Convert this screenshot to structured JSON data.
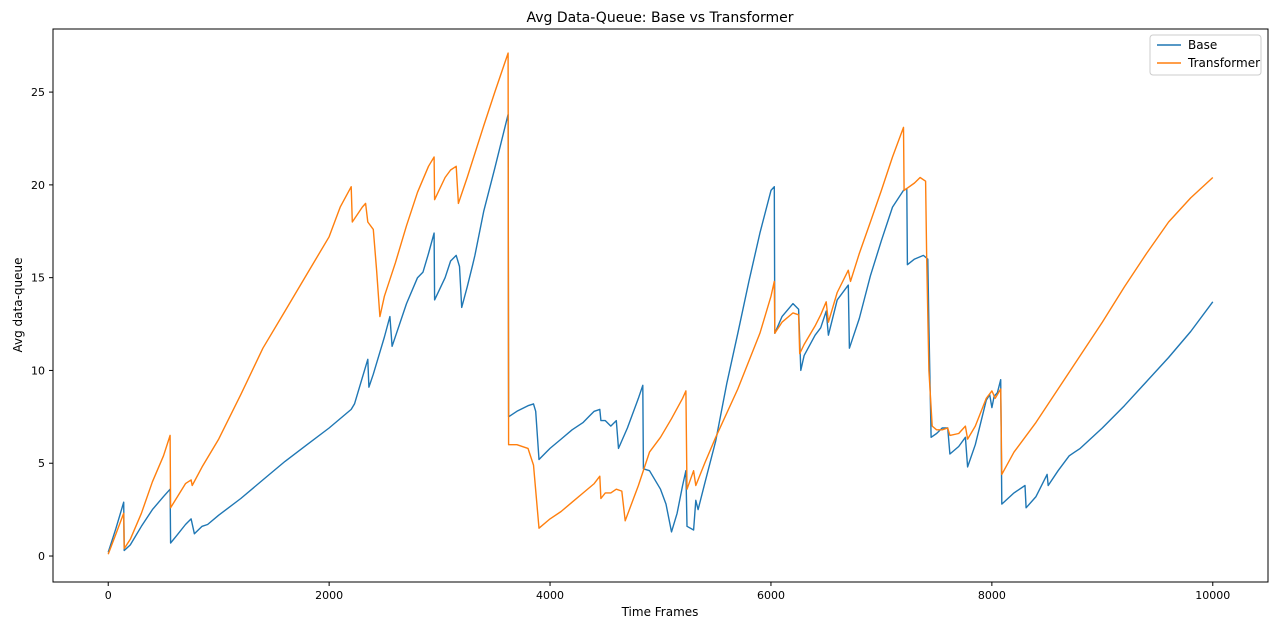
{
  "chart_data": {
    "type": "line",
    "title": "Avg Data-Queue: Base vs Transformer",
    "xlabel": "Time Frames",
    "ylabel": "Avg data-queue",
    "xlim": [
      -500,
      10500
    ],
    "ylim": [
      -1.4,
      28.4
    ],
    "xticks": [
      0,
      2000,
      4000,
      6000,
      8000,
      10000
    ],
    "yticks": [
      0,
      5,
      10,
      15,
      20,
      25
    ],
    "grid": false,
    "legend": "top-right",
    "series": [
      {
        "name": "Base",
        "color": "#1f77b4",
        "points": [
          [
            0,
            0.2
          ],
          [
            70,
            1.5
          ],
          [
            140,
            2.9
          ],
          [
            145,
            0.3
          ],
          [
            200,
            0.6
          ],
          [
            300,
            1.6
          ],
          [
            400,
            2.5
          ],
          [
            500,
            3.2
          ],
          [
            560,
            3.6
          ],
          [
            565,
            0.7
          ],
          [
            620,
            1.1
          ],
          [
            700,
            1.7
          ],
          [
            750,
            2.0
          ],
          [
            780,
            1.2
          ],
          [
            850,
            1.6
          ],
          [
            900,
            1.7
          ],
          [
            1000,
            2.2
          ],
          [
            1200,
            3.1
          ],
          [
            1400,
            4.1
          ],
          [
            1600,
            5.1
          ],
          [
            1800,
            6.0
          ],
          [
            2000,
            6.9
          ],
          [
            2200,
            7.9
          ],
          [
            2230,
            8.2
          ],
          [
            2350,
            10.6
          ],
          [
            2360,
            9.1
          ],
          [
            2400,
            9.8
          ],
          [
            2500,
            11.8
          ],
          [
            2550,
            12.9
          ],
          [
            2570,
            11.3
          ],
          [
            2700,
            13.6
          ],
          [
            2800,
            15.0
          ],
          [
            2850,
            15.3
          ],
          [
            2900,
            16.3
          ],
          [
            2950,
            17.4
          ],
          [
            2955,
            13.8
          ],
          [
            3050,
            15.0
          ],
          [
            3100,
            15.9
          ],
          [
            3150,
            16.2
          ],
          [
            3180,
            15.6
          ],
          [
            3200,
            13.4
          ],
          [
            3250,
            14.5
          ],
          [
            3300,
            15.7
          ],
          [
            3320,
            16.2
          ],
          [
            3400,
            18.6
          ],
          [
            3500,
            20.9
          ],
          [
            3620,
            23.8
          ],
          [
            3625,
            7.5
          ],
          [
            3700,
            7.8
          ],
          [
            3800,
            8.1
          ],
          [
            3850,
            8.2
          ],
          [
            3870,
            7.8
          ],
          [
            3900,
            5.2
          ],
          [
            4000,
            5.8
          ],
          [
            4100,
            6.3
          ],
          [
            4200,
            6.8
          ],
          [
            4300,
            7.2
          ],
          [
            4350,
            7.5
          ],
          [
            4400,
            7.8
          ],
          [
            4450,
            7.9
          ],
          [
            4460,
            7.3
          ],
          [
            4500,
            7.3
          ],
          [
            4550,
            7.0
          ],
          [
            4600,
            7.3
          ],
          [
            4620,
            5.8
          ],
          [
            4700,
            6.9
          ],
          [
            4800,
            8.5
          ],
          [
            4840,
            9.2
          ],
          [
            4845,
            4.7
          ],
          [
            4900,
            4.6
          ],
          [
            5000,
            3.6
          ],
          [
            5050,
            2.8
          ],
          [
            5100,
            1.3
          ],
          [
            5150,
            2.3
          ],
          [
            5200,
            3.8
          ],
          [
            5230,
            4.6
          ],
          [
            5240,
            1.6
          ],
          [
            5300,
            1.4
          ],
          [
            5320,
            3.0
          ],
          [
            5340,
            2.5
          ],
          [
            5400,
            3.9
          ],
          [
            5500,
            6.2
          ],
          [
            5600,
            9.3
          ],
          [
            5700,
            12.0
          ],
          [
            5800,
            14.8
          ],
          [
            5900,
            17.4
          ],
          [
            6000,
            19.7
          ],
          [
            6030,
            19.9
          ],
          [
            6035,
            12.0
          ],
          [
            6100,
            12.9
          ],
          [
            6200,
            13.6
          ],
          [
            6250,
            13.3
          ],
          [
            6270,
            10.0
          ],
          [
            6300,
            10.8
          ],
          [
            6400,
            11.9
          ],
          [
            6450,
            12.3
          ],
          [
            6500,
            13.2
          ],
          [
            6520,
            11.9
          ],
          [
            6600,
            13.8
          ],
          [
            6700,
            14.6
          ],
          [
            6710,
            11.2
          ],
          [
            6800,
            12.8
          ],
          [
            6900,
            15.1
          ],
          [
            7000,
            17.0
          ],
          [
            7100,
            18.8
          ],
          [
            7200,
            19.7
          ],
          [
            7230,
            19.8
          ],
          [
            7235,
            15.7
          ],
          [
            7300,
            16.0
          ],
          [
            7380,
            16.2
          ],
          [
            7420,
            16.0
          ],
          [
            7430,
            12.4
          ],
          [
            7450,
            6.4
          ],
          [
            7500,
            6.6
          ],
          [
            7550,
            6.9
          ],
          [
            7600,
            6.9
          ],
          [
            7620,
            5.5
          ],
          [
            7700,
            5.9
          ],
          [
            7760,
            6.4
          ],
          [
            7780,
            4.8
          ],
          [
            7850,
            6.0
          ],
          [
            7950,
            8.4
          ],
          [
            7980,
            8.7
          ],
          [
            8000,
            8.0
          ],
          [
            8020,
            8.6
          ],
          [
            8050,
            8.8
          ],
          [
            8080,
            9.5
          ],
          [
            8090,
            2.8
          ],
          [
            8200,
            3.4
          ],
          [
            8300,
            3.8
          ],
          [
            8310,
            2.6
          ],
          [
            8400,
            3.2
          ],
          [
            8500,
            4.4
          ],
          [
            8510,
            3.8
          ],
          [
            8600,
            4.6
          ],
          [
            8700,
            5.4
          ],
          [
            8750,
            5.6
          ],
          [
            8800,
            5.8
          ],
          [
            9000,
            6.9
          ],
          [
            9200,
            8.1
          ],
          [
            9400,
            9.4
          ],
          [
            9600,
            10.7
          ],
          [
            9800,
            12.1
          ],
          [
            10000,
            13.7
          ]
        ]
      },
      {
        "name": "Transformer",
        "color": "#ff7f0e",
        "points": [
          [
            0,
            0.1
          ],
          [
            70,
            1.2
          ],
          [
            140,
            2.3
          ],
          [
            145,
            0.4
          ],
          [
            200,
            0.9
          ],
          [
            300,
            2.3
          ],
          [
            400,
            4.0
          ],
          [
            500,
            5.4
          ],
          [
            560,
            6.5
          ],
          [
            565,
            2.6
          ],
          [
            700,
            3.9
          ],
          [
            750,
            4.1
          ],
          [
            760,
            3.8
          ],
          [
            850,
            4.8
          ],
          [
            1000,
            6.3
          ],
          [
            1200,
            8.7
          ],
          [
            1400,
            11.2
          ],
          [
            1600,
            13.2
          ],
          [
            1800,
            15.2
          ],
          [
            2000,
            17.2
          ],
          [
            2100,
            18.8
          ],
          [
            2200,
            19.9
          ],
          [
            2210,
            18.0
          ],
          [
            2300,
            18.8
          ],
          [
            2330,
            19.0
          ],
          [
            2350,
            18.0
          ],
          [
            2400,
            17.6
          ],
          [
            2430,
            15.4
          ],
          [
            2460,
            12.9
          ],
          [
            2500,
            14.0
          ],
          [
            2600,
            15.8
          ],
          [
            2700,
            17.8
          ],
          [
            2800,
            19.6
          ],
          [
            2900,
            21.0
          ],
          [
            2950,
            21.5
          ],
          [
            2955,
            19.2
          ],
          [
            3050,
            20.4
          ],
          [
            3100,
            20.8
          ],
          [
            3150,
            21.0
          ],
          [
            3170,
            19.0
          ],
          [
            3250,
            20.4
          ],
          [
            3400,
            23.2
          ],
          [
            3500,
            25.0
          ],
          [
            3620,
            27.1
          ],
          [
            3625,
            6.0
          ],
          [
            3700,
            6.0
          ],
          [
            3800,
            5.8
          ],
          [
            3850,
            4.9
          ],
          [
            3900,
            1.5
          ],
          [
            4000,
            2.0
          ],
          [
            4100,
            2.4
          ],
          [
            4200,
            2.9
          ],
          [
            4300,
            3.4
          ],
          [
            4400,
            3.9
          ],
          [
            4450,
            4.3
          ],
          [
            4460,
            3.1
          ],
          [
            4500,
            3.4
          ],
          [
            4550,
            3.4
          ],
          [
            4600,
            3.6
          ],
          [
            4650,
            3.5
          ],
          [
            4680,
            1.9
          ],
          [
            4800,
            3.8
          ],
          [
            4900,
            5.6
          ],
          [
            5000,
            6.4
          ],
          [
            5100,
            7.4
          ],
          [
            5200,
            8.5
          ],
          [
            5230,
            8.9
          ],
          [
            5240,
            3.6
          ],
          [
            5300,
            4.6
          ],
          [
            5320,
            3.8
          ],
          [
            5400,
            5.0
          ],
          [
            5500,
            6.4
          ],
          [
            5700,
            9.0
          ],
          [
            5900,
            12.0
          ],
          [
            6000,
            14.0
          ],
          [
            6030,
            14.8
          ],
          [
            6035,
            12.0
          ],
          [
            6100,
            12.6
          ],
          [
            6200,
            13.1
          ],
          [
            6250,
            13.0
          ],
          [
            6260,
            10.9
          ],
          [
            6300,
            11.4
          ],
          [
            6400,
            12.4
          ],
          [
            6450,
            13.0
          ],
          [
            6500,
            13.7
          ],
          [
            6520,
            12.6
          ],
          [
            6600,
            14.2
          ],
          [
            6700,
            15.4
          ],
          [
            6720,
            14.8
          ],
          [
            6800,
            16.3
          ],
          [
            6900,
            18.0
          ],
          [
            7000,
            19.7
          ],
          [
            7100,
            21.5
          ],
          [
            7200,
            23.1
          ],
          [
            7205,
            19.7
          ],
          [
            7300,
            20.1
          ],
          [
            7350,
            20.4
          ],
          [
            7400,
            20.2
          ],
          [
            7410,
            16.0
          ],
          [
            7430,
            10.0
          ],
          [
            7460,
            7.0
          ],
          [
            7500,
            6.8
          ],
          [
            7550,
            6.8
          ],
          [
            7600,
            6.9
          ],
          [
            7620,
            6.5
          ],
          [
            7700,
            6.6
          ],
          [
            7760,
            7.0
          ],
          [
            7780,
            6.3
          ],
          [
            7850,
            7.0
          ],
          [
            7950,
            8.5
          ],
          [
            8000,
            8.9
          ],
          [
            8030,
            8.5
          ],
          [
            8080,
            9.0
          ],
          [
            8090,
            4.4
          ],
          [
            8200,
            5.6
          ],
          [
            8400,
            7.2
          ],
          [
            8600,
            9.0
          ],
          [
            8800,
            10.8
          ],
          [
            9000,
            12.6
          ],
          [
            9200,
            14.5
          ],
          [
            9400,
            16.3
          ],
          [
            9600,
            18.0
          ],
          [
            9800,
            19.3
          ],
          [
            10000,
            20.4
          ]
        ]
      }
    ]
  }
}
